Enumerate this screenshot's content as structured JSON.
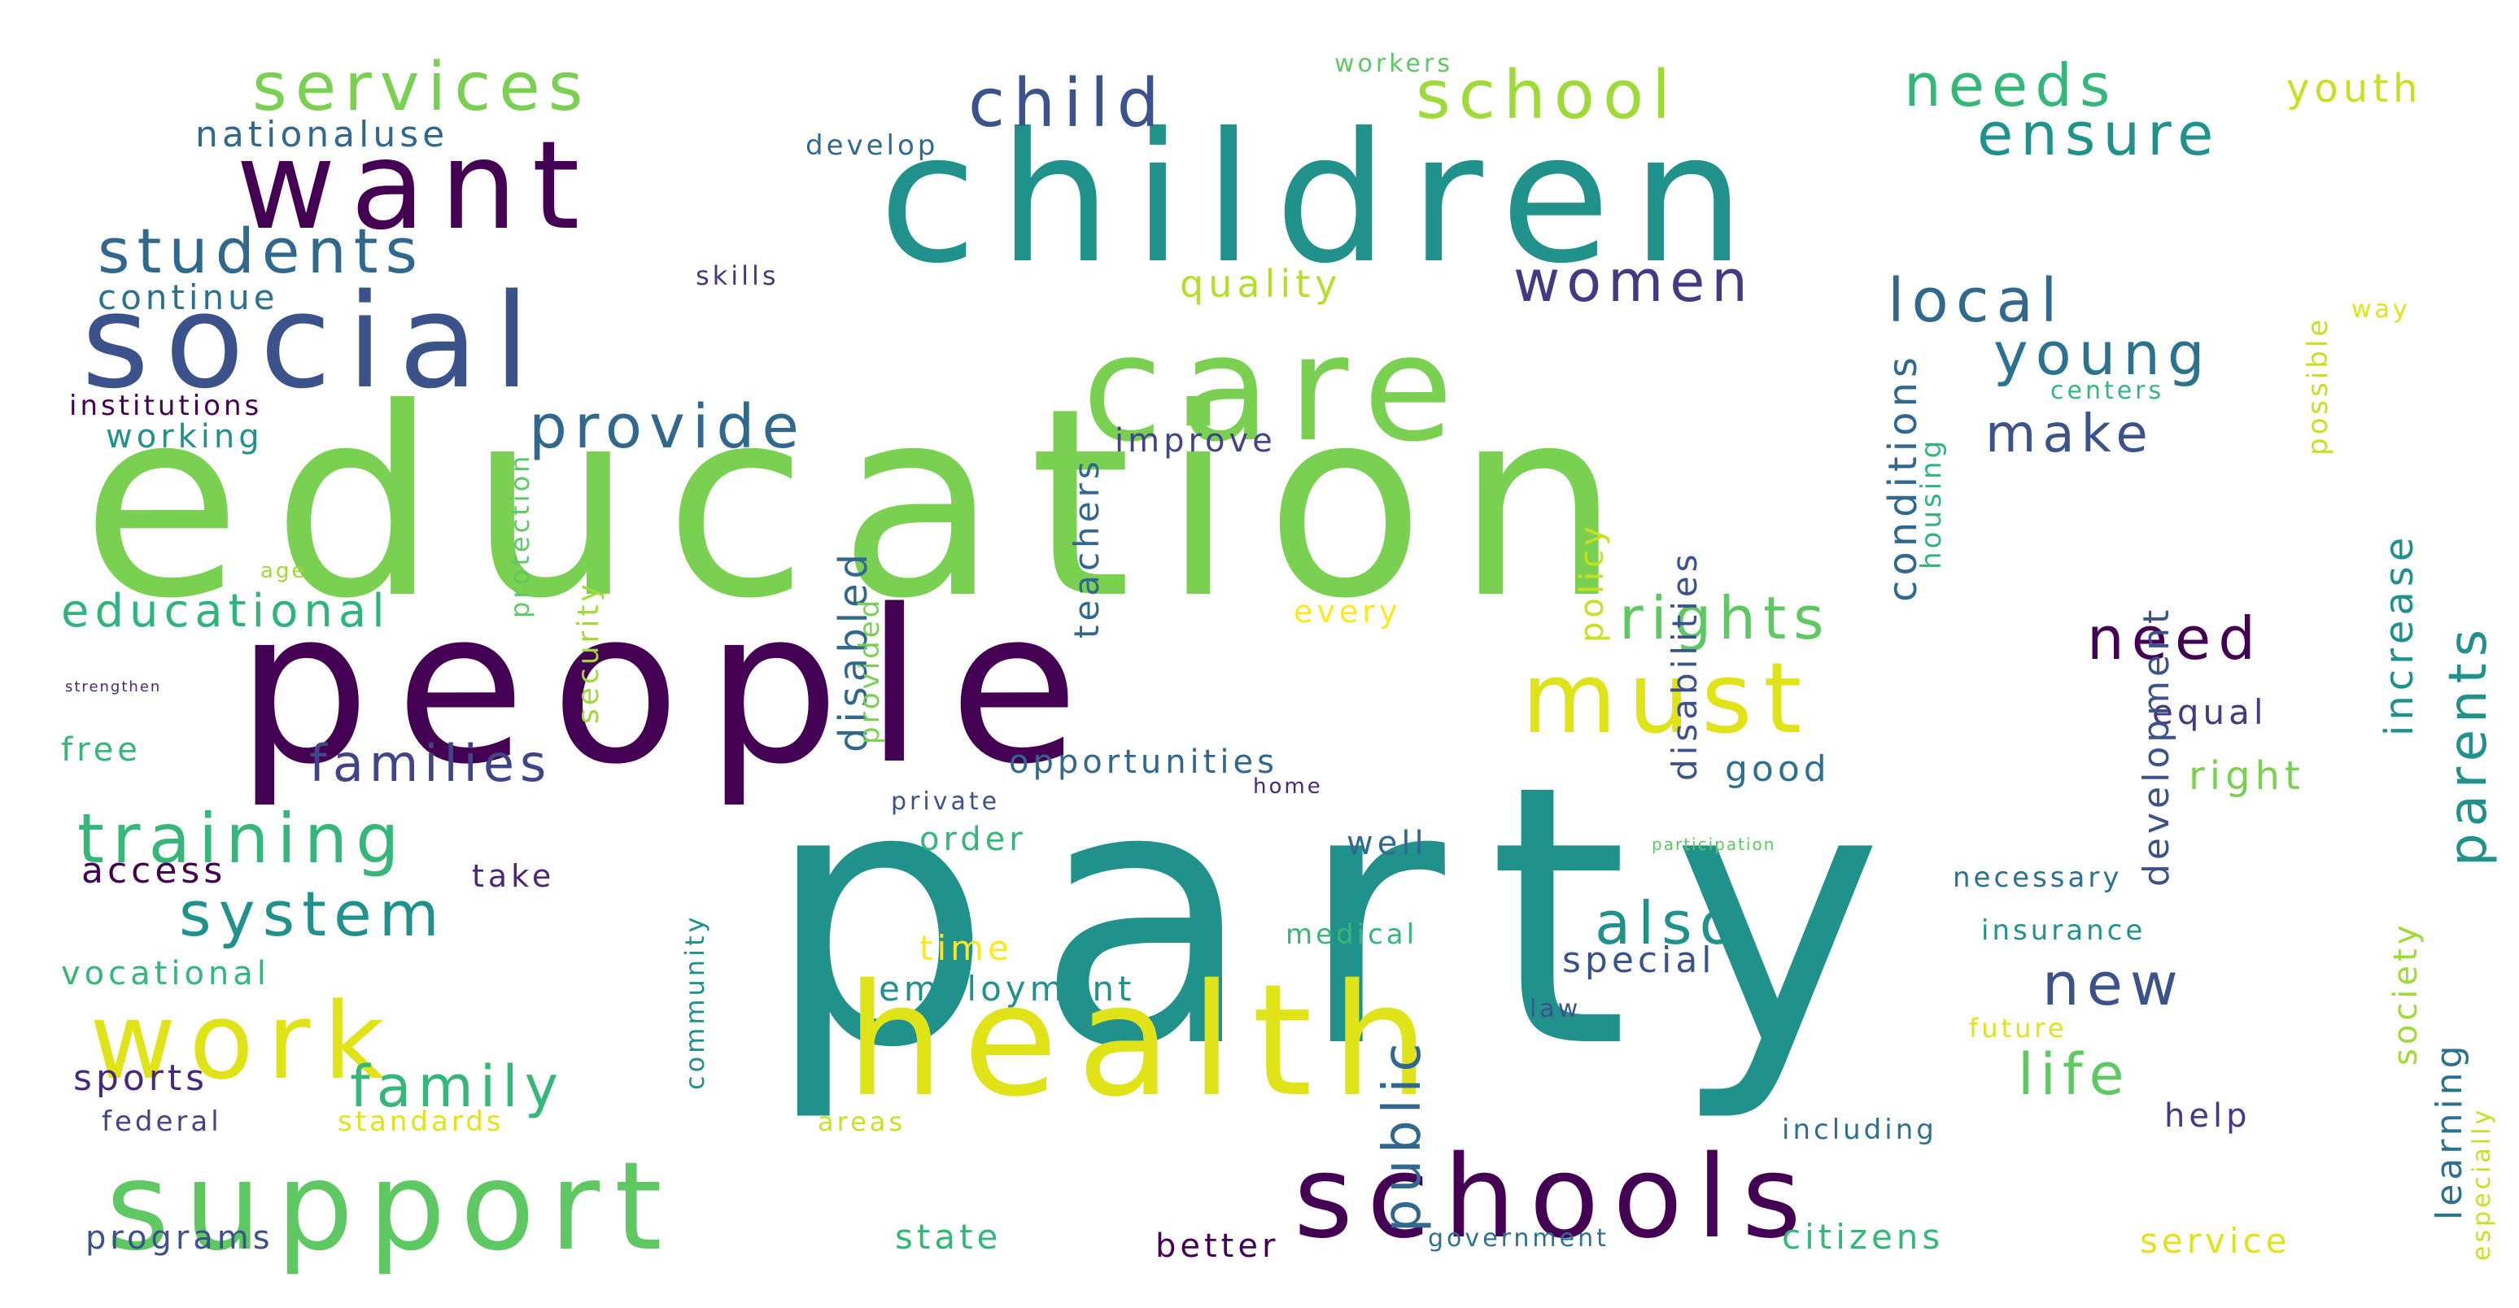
{
  "palette": {
    "dark_purple": "#440154",
    "indigo": "#3b528b",
    "blue": "#31688e",
    "teal": "#21918c",
    "green": "#35b779",
    "lime": "#7ad151",
    "yellow": "#dfe318",
    "light_yellow": "#f1e66c"
  },
  "words": [
    {
      "text": "party",
      "color": "#21918c"
    },
    {
      "text": "education",
      "color": "#7ad151"
    },
    {
      "text": "people",
      "color": "#440154"
    },
    {
      "text": "children",
      "color": "#21918c"
    },
    {
      "text": "care",
      "color": "#7ad151"
    },
    {
      "text": "social",
      "color": "#3b528b"
    },
    {
      "text": "health",
      "color": "#dfe318"
    },
    {
      "text": "support",
      "color": "#5ec962"
    },
    {
      "text": "schools",
      "color": "#440154"
    },
    {
      "text": "work",
      "color": "#dfe318"
    },
    {
      "text": "want",
      "color": "#440154"
    },
    {
      "text": "must",
      "color": "#dfe318"
    },
    {
      "text": "services",
      "color": "#7ad151"
    },
    {
      "text": "school",
      "color": "#a0da39"
    },
    {
      "text": "child",
      "color": "#3b528b"
    },
    {
      "text": "needs",
      "color": "#35b779"
    },
    {
      "text": "ensure",
      "color": "#21918c"
    },
    {
      "text": "youth",
      "color": "#c8e020"
    },
    {
      "text": "nationaluse",
      "color": "#31688e"
    },
    {
      "text": "develop",
      "color": "#31688e"
    },
    {
      "text": "workers",
      "color": "#5ec962"
    },
    {
      "text": "students",
      "color": "#31688e"
    },
    {
      "text": "skills",
      "color": "#443983"
    },
    {
      "text": "continue",
      "color": "#2c728e"
    },
    {
      "text": "quality",
      "color": "#b5de2b"
    },
    {
      "text": "women",
      "color": "#443983"
    },
    {
      "text": "local",
      "color": "#31688e"
    },
    {
      "text": "young",
      "color": "#2c728e"
    },
    {
      "text": "institutions",
      "color": "#440154"
    },
    {
      "text": "provide",
      "color": "#31688e"
    },
    {
      "text": "working",
      "color": "#21918c"
    },
    {
      "text": "improve",
      "color": "#414487"
    },
    {
      "text": "make",
      "color": "#3b528b"
    },
    {
      "text": "centers",
      "color": "#35b779"
    },
    {
      "text": "way",
      "color": "#dfe318"
    },
    {
      "text": "educational",
      "color": "#2fb47c"
    },
    {
      "text": "every",
      "color": "#fde725"
    },
    {
      "text": "rights",
      "color": "#5ec962"
    },
    {
      "text": "need",
      "color": "#440154"
    },
    {
      "text": "age",
      "color": "#a0da39"
    },
    {
      "text": "strengthen",
      "color": "#482878"
    },
    {
      "text": "families",
      "color": "#414487"
    },
    {
      "text": "free",
      "color": "#35b779"
    },
    {
      "text": "opportunities",
      "color": "#31688e"
    },
    {
      "text": "good",
      "color": "#2c728e"
    },
    {
      "text": "equal",
      "color": "#443983"
    },
    {
      "text": "right",
      "color": "#7ad151"
    },
    {
      "text": "training",
      "color": "#35b779"
    },
    {
      "text": "private",
      "color": "#3b528b"
    },
    {
      "text": "home",
      "color": "#482878"
    },
    {
      "text": "order",
      "color": "#35b779"
    },
    {
      "text": "well",
      "color": "#31688e"
    },
    {
      "text": "participation",
      "color": "#5ec962"
    },
    {
      "text": "access",
      "color": "#440154"
    },
    {
      "text": "take",
      "color": "#482878"
    },
    {
      "text": "system",
      "color": "#21918c"
    },
    {
      "text": "also",
      "color": "#21918c"
    },
    {
      "text": "necessary",
      "color": "#2c728e"
    },
    {
      "text": "time",
      "color": "#fde725"
    },
    {
      "text": "medical",
      "color": "#35b779"
    },
    {
      "text": "insurance",
      "color": "#21918c"
    },
    {
      "text": "special",
      "color": "#3b528b"
    },
    {
      "text": "vocational",
      "color": "#35b779"
    },
    {
      "text": "employment",
      "color": "#21918c"
    },
    {
      "text": "new",
      "color": "#3b528b"
    },
    {
      "text": "law",
      "color": "#3b528b"
    },
    {
      "text": "future",
      "color": "#dfe318"
    },
    {
      "text": "family",
      "color": "#35b779"
    },
    {
      "text": "life",
      "color": "#5ec962"
    },
    {
      "text": "sports",
      "color": "#482878"
    },
    {
      "text": "federal",
      "color": "#414487"
    },
    {
      "text": "standards",
      "color": "#dfe318"
    },
    {
      "text": "areas",
      "color": "#c8e020"
    },
    {
      "text": "including",
      "color": "#2c728e"
    },
    {
      "text": "help",
      "color": "#443983"
    },
    {
      "text": "programs",
      "color": "#3b528b"
    },
    {
      "text": "state",
      "color": "#35b779"
    },
    {
      "text": "better",
      "color": "#440154"
    },
    {
      "text": "government",
      "color": "#2c728e"
    },
    {
      "text": "citizens",
      "color": "#35b779"
    },
    {
      "text": "service",
      "color": "#dfe318"
    },
    {
      "text": "public",
      "color": "#31688e"
    },
    {
      "text": "teachers",
      "color": "#31688e"
    },
    {
      "text": "disabled",
      "color": "#31688e"
    },
    {
      "text": "provided",
      "color": "#7ad151"
    },
    {
      "text": "policy",
      "color": "#c8e020"
    },
    {
      "text": "disabilities",
      "color": "#3b528b"
    },
    {
      "text": "conditions",
      "color": "#31688e"
    },
    {
      "text": "housing",
      "color": "#2fb47c"
    },
    {
      "text": "development",
      "color": "#3b528b"
    },
    {
      "text": "increase",
      "color": "#21918c"
    },
    {
      "text": "parents",
      "color": "#21918c"
    },
    {
      "text": "possible",
      "color": "#c8e020"
    },
    {
      "text": "security",
      "color": "#a0da39"
    },
    {
      "text": "protection",
      "color": "#5ec962"
    },
    {
      "text": "community",
      "color": "#21918c"
    },
    {
      "text": "society",
      "color": "#a0da39"
    },
    {
      "text": "learning",
      "color": "#2c728e"
    },
    {
      "text": "especially",
      "color": "#c8e020"
    }
  ]
}
